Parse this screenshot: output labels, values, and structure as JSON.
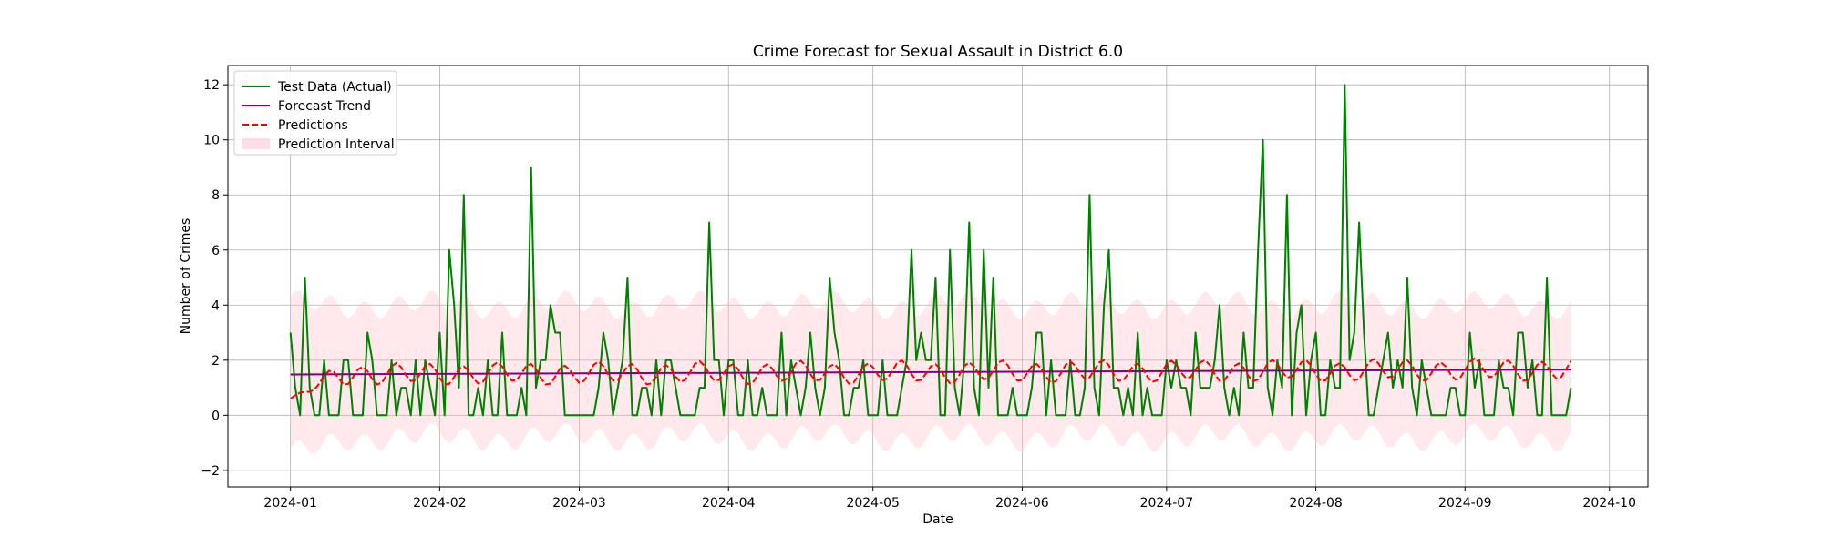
{
  "chart_data": {
    "type": "line",
    "title": "Crime Forecast for Sexual Assault in District 6.0",
    "xlabel": "Date",
    "ylabel": "Number of Crimes",
    "xlim": [
      "2023-12-19",
      "2024-10-09"
    ],
    "ylim": [
      -2.6,
      12.7
    ],
    "grid": true,
    "legend_position": "top-left",
    "x_ticks": [
      "2024-01-01",
      "2024-02-01",
      "2024-03-01",
      "2024-04-01",
      "2024-05-01",
      "2024-06-01",
      "2024-07-01",
      "2024-08-01",
      "2024-09-01",
      "2024-10-01"
    ],
    "x_tick_labels": [
      "2024-01",
      "2024-02",
      "2024-03",
      "2024-04",
      "2024-05",
      "2024-06",
      "2024-07",
      "2024-08",
      "2024-09",
      "2024-10"
    ],
    "y_ticks": [
      -2,
      0,
      2,
      4,
      6,
      8,
      10,
      12
    ],
    "y_tick_labels": [
      "−2",
      "0",
      "2",
      "4",
      "6",
      "8",
      "10",
      "12"
    ],
    "start_date": "2024-01-01",
    "end_date": "2024-09-22",
    "series": [
      {
        "name": "Test Data (Actual)",
        "color": "#008000",
        "style": "solid",
        "values": [
          3,
          1,
          0,
          5,
          1,
          0,
          0,
          2,
          0,
          0,
          0,
          2,
          2,
          0,
          0,
          0,
          3,
          2,
          0,
          0,
          0,
          2,
          0,
          1,
          1,
          0,
          2,
          0,
          2,
          1,
          0,
          3,
          0,
          6,
          4,
          1,
          8,
          0,
          0,
          1,
          0,
          2,
          0,
          0,
          3,
          0,
          0,
          0,
          1,
          0,
          9,
          1,
          2,
          2,
          4,
          3,
          3,
          0,
          0,
          0,
          0,
          0,
          0,
          0,
          1,
          3,
          2,
          0,
          1,
          2,
          5,
          0,
          0,
          1,
          1,
          0,
          2,
          0,
          2,
          2,
          1,
          0,
          0,
          0,
          0,
          1,
          1,
          7,
          2,
          2,
          0,
          2,
          2,
          0,
          0,
          2,
          0,
          0,
          1,
          0,
          0,
          0,
          3,
          0,
          2,
          1,
          0,
          1,
          3,
          1,
          0,
          1,
          5,
          3,
          2,
          0,
          0,
          1,
          1,
          2,
          0,
          0,
          0,
          2,
          0,
          0,
          0,
          1,
          2,
          6,
          2,
          3,
          2,
          2,
          5,
          0,
          0,
          6,
          1,
          0,
          2,
          7,
          1,
          0,
          6,
          1,
          5,
          0,
          0,
          0,
          1,
          0,
          0,
          0,
          1,
          3,
          3,
          0,
          2,
          0,
          0,
          0,
          2,
          0,
          0,
          1,
          8,
          1,
          0,
          4,
          6,
          1,
          1,
          0,
          1,
          0,
          3,
          0,
          1,
          0,
          0,
          0,
          2,
          1,
          2,
          1,
          1,
          0,
          3,
          1,
          1,
          1,
          2,
          4,
          1,
          0,
          1,
          0,
          3,
          1,
          1,
          6,
          10,
          1,
          0,
          2,
          1,
          8,
          0,
          3,
          4,
          0,
          2,
          3,
          0,
          0,
          2,
          1,
          1,
          12,
          2,
          3,
          7,
          3,
          0,
          0,
          1,
          2,
          3,
          1,
          2,
          1,
          5,
          1,
          0,
          2,
          1,
          0,
          0,
          0,
          0,
          1,
          1,
          0,
          0,
          3,
          1,
          2,
          0,
          0,
          0,
          2,
          1,
          1,
          0,
          3,
          3,
          1,
          2,
          0,
          0,
          5,
          0,
          0,
          0,
          0,
          1
        ]
      },
      {
        "name": "Forecast Trend",
        "color": "#800080",
        "style": "solid",
        "trend_start": 1.48,
        "trend_end": 1.66
      },
      {
        "name": "Predictions",
        "color": "#ff0000",
        "style": "dashed",
        "mean": 1.62,
        "weekly_amplitude": 0.35,
        "initial_value": 0.6
      },
      {
        "name": "Prediction Interval",
        "color": "#ffc0cb",
        "style": "band",
        "opacity": 0.35,
        "upper_mean": 4.0,
        "lower_mean": -0.8,
        "upper_range": [
          3.5,
          4.8
        ],
        "lower_range": [
          -1.9,
          -0.3
        ]
      }
    ]
  }
}
